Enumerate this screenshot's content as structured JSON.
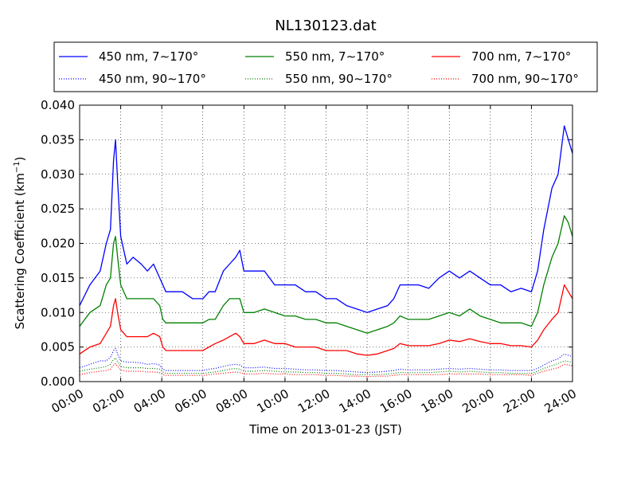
{
  "chart_data": {
    "type": "line",
    "title": "NL130123.dat",
    "xlabel": "Time on 2013-01-23 (JST)",
    "ylabel": "Scattering Coefficient (km",
    "ylabel_sup": "−1",
    "ylabel_close": ")",
    "x_range_hours": [
      0,
      24
    ],
    "ylim": [
      0,
      0.04
    ],
    "x_ticks": [
      0,
      2,
      4,
      6,
      8,
      10,
      12,
      14,
      16,
      18,
      20,
      22,
      24
    ],
    "x_tick_labels": [
      "00:00",
      "02:00",
      "04:00",
      "06:00",
      "08:00",
      "10:00",
      "12:00",
      "14:00",
      "16:00",
      "18:00",
      "20:00",
      "22:00",
      "24:00"
    ],
    "y_ticks": [
      0,
      0.005,
      0.01,
      0.015,
      0.02,
      0.025,
      0.03,
      0.035,
      0.04
    ],
    "y_tick_labels": [
      "0.000",
      "0.005",
      "0.010",
      "0.015",
      "0.020",
      "0.025",
      "0.030",
      "0.035",
      "0.040"
    ],
    "grid": true,
    "legend_position": "top",
    "x_hours": [
      0,
      0.5,
      1,
      1.3,
      1.5,
      1.65,
      1.75,
      1.85,
      2,
      2.3,
      2.6,
      3,
      3.3,
      3.6,
      3.9,
      4.05,
      4.2,
      4.5,
      5,
      5.5,
      6,
      6.3,
      6.6,
      7,
      7.3,
      7.6,
      7.8,
      8,
      8.5,
      9,
      9.5,
      10,
      10.5,
      11,
      11.5,
      12,
      12.5,
      13,
      13.5,
      14,
      14.5,
      15,
      15.3,
      15.6,
      16,
      16.5,
      17,
      17.5,
      18,
      18.5,
      19,
      19.5,
      20,
      20.5,
      21,
      21.5,
      22,
      22.3,
      22.6,
      23,
      23.3,
      23.6,
      23.8,
      24
    ],
    "series": [
      {
        "name": "450 nm, 7∼170°",
        "color": "#0000ff",
        "style": "solid",
        "values": [
          0.011,
          0.014,
          0.016,
          0.02,
          0.022,
          0.032,
          0.035,
          0.029,
          0.021,
          0.017,
          0.018,
          0.017,
          0.016,
          0.017,
          0.015,
          0.014,
          0.013,
          0.013,
          0.013,
          0.012,
          0.012,
          0.013,
          0.013,
          0.016,
          0.017,
          0.018,
          0.019,
          0.016,
          0.016,
          0.016,
          0.014,
          0.014,
          0.014,
          0.013,
          0.013,
          0.012,
          0.012,
          0.011,
          0.0105,
          0.01,
          0.0105,
          0.011,
          0.012,
          0.014,
          0.014,
          0.014,
          0.0135,
          0.015,
          0.016,
          0.015,
          0.016,
          0.015,
          0.014,
          0.014,
          0.013,
          0.0135,
          0.013,
          0.016,
          0.022,
          0.028,
          0.03,
          0.037,
          0.035,
          0.033
        ]
      },
      {
        "name": "550 nm, 7∼170°",
        "color": "#008000",
        "style": "solid",
        "values": [
          0.008,
          0.01,
          0.011,
          0.014,
          0.015,
          0.02,
          0.021,
          0.018,
          0.014,
          0.012,
          0.012,
          0.012,
          0.012,
          0.012,
          0.011,
          0.009,
          0.0085,
          0.0085,
          0.0085,
          0.0085,
          0.0085,
          0.009,
          0.009,
          0.011,
          0.012,
          0.012,
          0.012,
          0.01,
          0.01,
          0.0105,
          0.01,
          0.0095,
          0.0095,
          0.009,
          0.009,
          0.0085,
          0.0085,
          0.008,
          0.0075,
          0.007,
          0.0075,
          0.008,
          0.0085,
          0.0095,
          0.009,
          0.009,
          0.009,
          0.0095,
          0.01,
          0.0095,
          0.0105,
          0.0095,
          0.009,
          0.0085,
          0.0085,
          0.0085,
          0.008,
          0.01,
          0.014,
          0.018,
          0.02,
          0.024,
          0.023,
          0.021
        ]
      },
      {
        "name": "700 nm, 7∼170°",
        "color": "#ff0000",
        "style": "solid",
        "values": [
          0.004,
          0.005,
          0.0055,
          0.007,
          0.008,
          0.011,
          0.012,
          0.01,
          0.0075,
          0.0065,
          0.0065,
          0.0065,
          0.0065,
          0.007,
          0.0065,
          0.005,
          0.0045,
          0.0045,
          0.0045,
          0.0045,
          0.0045,
          0.005,
          0.0055,
          0.006,
          0.0065,
          0.007,
          0.0065,
          0.0055,
          0.0055,
          0.006,
          0.0055,
          0.0055,
          0.005,
          0.005,
          0.005,
          0.0045,
          0.0045,
          0.0045,
          0.004,
          0.0038,
          0.004,
          0.0045,
          0.0048,
          0.0055,
          0.0052,
          0.0052,
          0.0052,
          0.0055,
          0.006,
          0.0058,
          0.0062,
          0.0058,
          0.0055,
          0.0055,
          0.0052,
          0.0052,
          0.005,
          0.006,
          0.0075,
          0.009,
          0.01,
          0.014,
          0.013,
          0.012
        ]
      },
      {
        "name": "450 nm, 90∼170°",
        "color": "#0000ff",
        "style": "dotted",
        "values": [
          0.002,
          0.0025,
          0.003,
          0.003,
          0.0035,
          0.0045,
          0.0048,
          0.004,
          0.003,
          0.0028,
          0.0028,
          0.0027,
          0.0025,
          0.0026,
          0.0024,
          0.0018,
          0.0016,
          0.0016,
          0.0016,
          0.0016,
          0.0016,
          0.0018,
          0.0019,
          0.0022,
          0.0024,
          0.0025,
          0.0024,
          0.002,
          0.002,
          0.0021,
          0.0019,
          0.0019,
          0.0018,
          0.0017,
          0.0017,
          0.0016,
          0.0016,
          0.0015,
          0.0014,
          0.0013,
          0.0014,
          0.0015,
          0.0016,
          0.0018,
          0.0017,
          0.0017,
          0.0017,
          0.0018,
          0.0019,
          0.0018,
          0.0019,
          0.0018,
          0.0017,
          0.0017,
          0.0016,
          0.0016,
          0.0016,
          0.0019,
          0.0024,
          0.003,
          0.0033,
          0.004,
          0.0038,
          0.0036
        ]
      },
      {
        "name": "550 nm, 90∼170°",
        "color": "#008000",
        "style": "dotted",
        "values": [
          0.0015,
          0.0018,
          0.002,
          0.0022,
          0.0025,
          0.0032,
          0.0034,
          0.0029,
          0.0022,
          0.002,
          0.002,
          0.002,
          0.0019,
          0.0019,
          0.0018,
          0.0014,
          0.0012,
          0.0012,
          0.0012,
          0.0012,
          0.0012,
          0.0013,
          0.0014,
          0.0016,
          0.0018,
          0.0019,
          0.0018,
          0.0015,
          0.0015,
          0.0016,
          0.0015,
          0.0014,
          0.0014,
          0.0013,
          0.0013,
          0.0012,
          0.0012,
          0.0011,
          0.001,
          0.001,
          0.001,
          0.0011,
          0.0012,
          0.0013,
          0.0013,
          0.0013,
          0.0013,
          0.0014,
          0.0015,
          0.0014,
          0.0015,
          0.0014,
          0.0013,
          0.0013,
          0.0012,
          0.0012,
          0.0012,
          0.0015,
          0.0019,
          0.0023,
          0.0026,
          0.003,
          0.0029,
          0.0028
        ]
      },
      {
        "name": "700 nm, 90∼170°",
        "color": "#ff0000",
        "style": "dotted",
        "values": [
          0.001,
          0.0013,
          0.0015,
          0.0016,
          0.0018,
          0.0024,
          0.0026,
          0.0022,
          0.0017,
          0.0015,
          0.0015,
          0.0015,
          0.0014,
          0.0014,
          0.0013,
          0.001,
          0.0009,
          0.0009,
          0.0009,
          0.0009,
          0.0009,
          0.001,
          0.0011,
          0.0012,
          0.0013,
          0.0014,
          0.0013,
          0.0011,
          0.0011,
          0.0012,
          0.0011,
          0.0011,
          0.001,
          0.001,
          0.001,
          0.0009,
          0.0009,
          0.0008,
          0.0008,
          0.0007,
          0.0008,
          0.0008,
          0.0009,
          0.001,
          0.001,
          0.001,
          0.001,
          0.001,
          0.0011,
          0.0011,
          0.0011,
          0.0011,
          0.001,
          0.001,
          0.001,
          0.001,
          0.0009,
          0.0012,
          0.0015,
          0.0018,
          0.002,
          0.0025,
          0.0024,
          0.0023
        ]
      }
    ]
  }
}
